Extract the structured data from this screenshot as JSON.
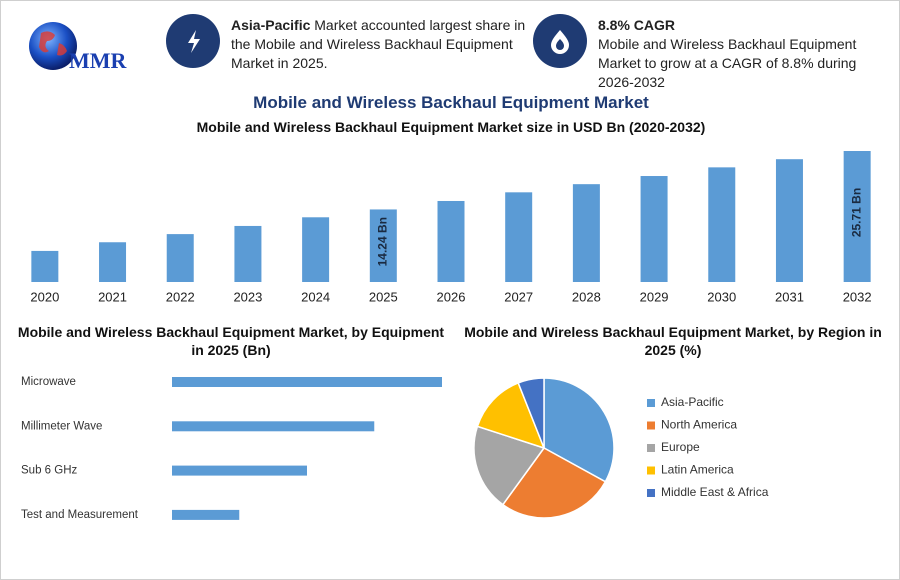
{
  "header": {
    "logo_text": "MMR",
    "highlight_1": {
      "bold": "Asia-Pacific",
      "text": "Market accounted largest share in the Mobile and Wireless Backhaul Equipment Market in 2025."
    },
    "highlight_2": {
      "title": "8.8% CAGR",
      "text": "Mobile and Wireless Backhaul Equipment Market to grow at a CAGR of 8.8% during 2026-2032"
    }
  },
  "chart_data": [
    {
      "type": "bar",
      "title": "Mobile and Wireless Backhaul Equipment Market",
      "subtitle": "Mobile and Wireless Backhaul Equipment Market size in USD Bn (2020-2032)",
      "categories": [
        "2020",
        "2021",
        "2022",
        "2023",
        "2024",
        "2025",
        "2026",
        "2027",
        "2028",
        "2029",
        "2030",
        "2031",
        "2032"
      ],
      "values": [
        6.1,
        7.8,
        9.4,
        11.0,
        12.7,
        14.24,
        15.9,
        17.6,
        19.2,
        20.8,
        22.5,
        24.1,
        25.71
      ],
      "value_labels": [
        null,
        null,
        null,
        null,
        null,
        "14.24 Bn",
        null,
        null,
        null,
        null,
        null,
        null,
        "25.71 Bn"
      ],
      "color": "#5b9bd5"
    },
    {
      "type": "hbar",
      "title": "Mobile and Wireless Backhaul Equipment Market, by Equipment in 2025 (Bn)",
      "categories": [
        "Microwave",
        "Millimeter Wave",
        "Sub 6 GHz",
        "Test and Measurement"
      ],
      "values": [
        5.7,
        4.27,
        2.85,
        1.42
      ],
      "color": "#5b9bd5"
    },
    {
      "type": "pie",
      "title": "Mobile and Wireless Backhaul Equipment Market, by Region in 2025 (%)",
      "categories": [
        "Asia-Pacific",
        "North America",
        "Europe",
        "Latin America",
        "Middle East & Africa"
      ],
      "values": [
        33,
        27,
        20,
        14,
        6
      ],
      "colors": [
        "#5b9bd5",
        "#ed7d31",
        "#a5a5a5",
        "#ffc000",
        "#4472c4"
      ]
    }
  ]
}
